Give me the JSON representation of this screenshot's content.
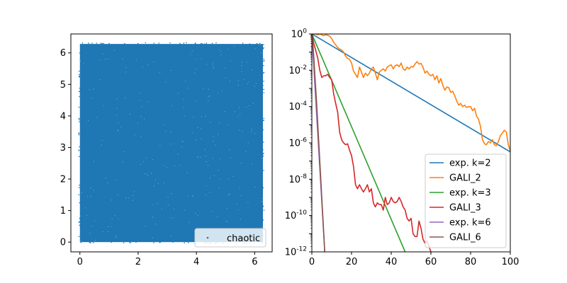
{
  "chart_data": [
    {
      "type": "scatter",
      "title": "",
      "xlabel": "",
      "ylabel": "",
      "xlim": [
        -0.31,
        6.6
      ],
      "ylim": [
        -0.31,
        6.6
      ],
      "x_ticks": [
        0,
        2,
        4,
        6
      ],
      "y_ticks": [
        0,
        1,
        2,
        3,
        4,
        5,
        6
      ],
      "series": [
        {
          "name": "chaotic",
          "color": "#1f77b4",
          "domain": [
            0,
            6.2832
          ],
          "marker": "point"
        }
      ],
      "legend": {
        "position": "lower right",
        "entries": [
          "chaotic"
        ]
      },
      "grid": false
    },
    {
      "type": "line",
      "title": "",
      "xlabel": "",
      "ylabel": "",
      "yscale": "log",
      "xlim": [
        0,
        100
      ],
      "ylim": [
        1e-12,
        1
      ],
      "x_ticks": [
        0,
        20,
        40,
        60,
        80,
        100
      ],
      "y_ticks": [
        {
          "value": 1,
          "base": "10",
          "exp": "0"
        },
        {
          "value": 0.01,
          "base": "10",
          "exp": "-2"
        },
        {
          "value": 0.0001,
          "base": "10",
          "exp": "-4"
        },
        {
          "value": 1e-06,
          "base": "10",
          "exp": "-6"
        },
        {
          "value": 1e-08,
          "base": "10",
          "exp": "-8"
        },
        {
          "value": 1e-10,
          "base": "10",
          "exp": "-10"
        },
        {
          "value": 1e-12,
          "base": "10",
          "exp": "-12"
        }
      ],
      "series": [
        {
          "name": "exp. k=2",
          "color": "#1f77b4",
          "x": [
            0,
            100
          ],
          "y": [
            1,
            3.2e-07
          ]
        },
        {
          "name": "GALI_2",
          "color": "#ff7f0e",
          "x": [
            0,
            1,
            2,
            3,
            4,
            5,
            6,
            7,
            8,
            9,
            10,
            11,
            12,
            13,
            14,
            15,
            16,
            17,
            18,
            19,
            20,
            21,
            22,
            23,
            24,
            25,
            26,
            27,
            28,
            29,
            30,
            31,
            32,
            33,
            34,
            35,
            36,
            37,
            38,
            39,
            40,
            41,
            42,
            43,
            44,
            45,
            46,
            47,
            48,
            49,
            50,
            51,
            52,
            53,
            54,
            55,
            56,
            57,
            58,
            59,
            60,
            61,
            62,
            63,
            64,
            65,
            66,
            67,
            68,
            69,
            70,
            71,
            72,
            73,
            74,
            75,
            76,
            77,
            78,
            79,
            80,
            81,
            82,
            83,
            84,
            85,
            86,
            87,
            88,
            89,
            90,
            91,
            92,
            93,
            94,
            95,
            96,
            97,
            98,
            99,
            100
          ],
          "y": [
            1,
            1,
            1,
            0.9,
            1,
            0.9,
            0.8,
            0.9,
            0.85,
            0.75,
            0.55,
            0.35,
            0.25,
            0.18,
            0.15,
            0.13,
            0.1,
            0.06,
            0.045,
            0.04,
            0.025,
            0.009,
            0.006,
            0.004,
            0.015,
            0.008,
            0.004,
            0.007,
            0.005,
            0.007,
            0.012,
            0.015,
            0.007,
            0.003,
            0.008,
            0.01,
            0.012,
            0.009,
            0.015,
            0.018,
            0.02,
            0.012,
            0.018,
            0.02,
            0.016,
            0.025,
            0.012,
            0.01,
            0.015,
            0.012,
            0.016,
            0.015,
            0.022,
            0.03,
            0.022,
            0.024,
            0.015,
            0.007,
            0.009,
            0.006,
            0.005,
            0.006,
            0.003,
            0.005,
            0.002,
            0.0035,
            0.0015,
            0.0008,
            0.0012,
            0.0011,
            0.0006,
            0.0007,
            0.0004,
            0.0002,
            0.00012,
            0.00015,
            0.0001,
            0.00012,
            9e-05,
            0.0001,
            0.0001,
            6e-05,
            8e-05,
            3e-05,
            2e-05,
            8e-06,
            1.5e-06,
            9e-07,
            8e-07,
            1.2e-06,
            1e-06,
            1.5e-06,
            8e-07,
            7e-07,
            1.2e-06,
            2.5e-06,
            3.5e-06,
            5e-06,
            4e-06,
            8e-07,
            3.5e-07
          ]
        },
        {
          "name": "exp. k=3",
          "color": "#2ca02c",
          "x": [
            0,
            47
          ],
          "y": [
            1,
            1e-12
          ]
        },
        {
          "name": "GALI_3",
          "color": "#d62728",
          "x": [
            0,
            1,
            2,
            3,
            4,
            5,
            6,
            7,
            8,
            9,
            10,
            11,
            12,
            13,
            14,
            15,
            16,
            17,
            18,
            19,
            20,
            21,
            22,
            23,
            24,
            25,
            26,
            27,
            28,
            29,
            30,
            31,
            32,
            33,
            34,
            35,
            36,
            37,
            38,
            39,
            40,
            41,
            42,
            43,
            44,
            45,
            46,
            47,
            48,
            49,
            50,
            51,
            52,
            53,
            54,
            55,
            56,
            57,
            58,
            59,
            60
          ],
          "y": [
            1,
            0.3,
            0.12,
            0.045,
            0.01,
            0.004,
            0.005,
            0.005,
            0.006,
            0.004,
            0.003,
            0.0005,
            0.00015,
            5e-05,
            4e-06,
            1.5e-06,
            1e-06,
            8e-07,
            9e-07,
            4e-07,
            2e-07,
            5e-08,
            5e-09,
            3e-09,
            5e-09,
            3e-09,
            2e-09,
            3e-09,
            5e-09,
            2e-09,
            3e-09,
            5e-10,
            3e-10,
            5e-10,
            4e-10,
            4e-10,
            2e-10,
            1e-09,
            4e-10,
            5e-10,
            1e-09,
            6e-10,
            5e-10,
            6e-10,
            1e-09,
            6e-10,
            3e-10,
            2e-10,
            7e-11,
            5e-11,
            7e-11,
            1e-11,
            7e-12,
            7e-12,
            5e-11,
            2e-11,
            5e-12,
            3e-12,
            4e-12,
            2e-12,
            1e-12
          ]
        },
        {
          "name": "exp. k=6",
          "color": "#9467bd",
          "x": [
            0,
            6.5
          ],
          "y": [
            1,
            1e-12
          ]
        },
        {
          "name": "GALI_6",
          "color": "#8c564b",
          "x": [
            0,
            0.5,
            1,
            1.5,
            2,
            2.5,
            3,
            3.5,
            4,
            4.5,
            5,
            5.5,
            6,
            6.5
          ],
          "y": [
            1,
            0.3,
            0.05,
            0.006,
            0.0008,
            0.0001,
            1e-05,
            1e-06,
            1e-07,
            1e-08,
            1e-09,
            1e-10,
            1e-11,
            1e-12
          ]
        }
      ],
      "legend": {
        "position": "lower right",
        "entries": [
          "exp. k=2",
          "GALI_2",
          "exp. k=3",
          "GALI_3",
          "exp. k=6",
          "GALI_6"
        ]
      },
      "grid": false
    }
  ]
}
